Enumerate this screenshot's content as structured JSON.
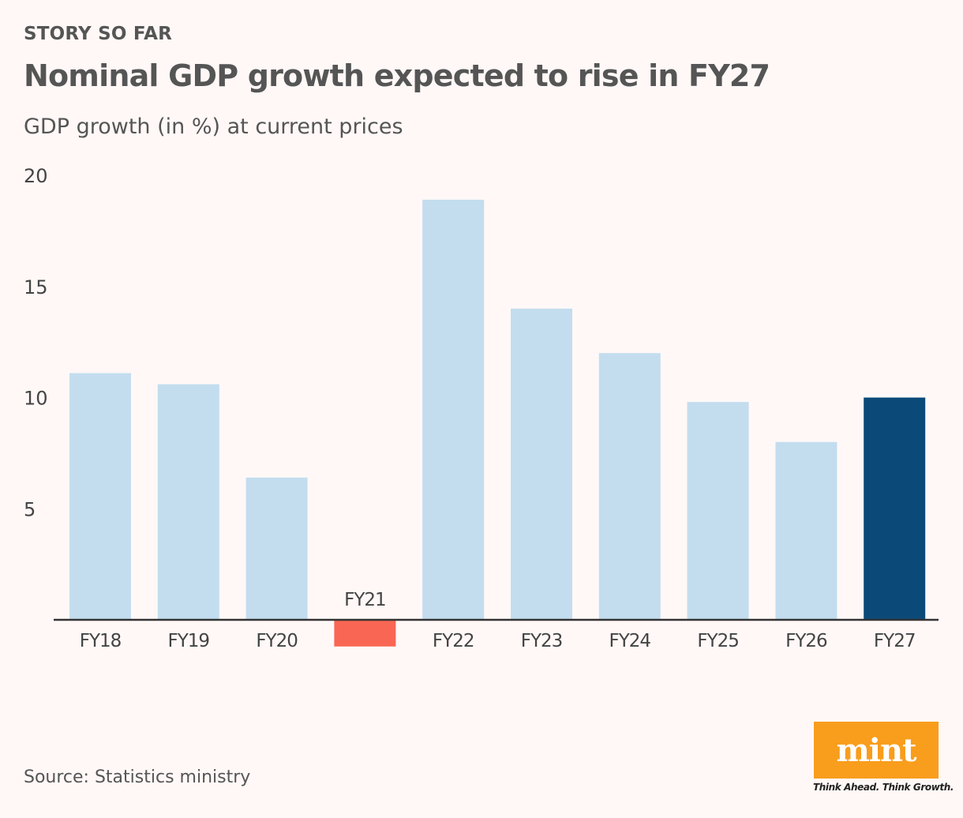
{
  "kicker": "STORY SO FAR",
  "title": "Nominal GDP growth expected to rise in FY27",
  "source": "Source: Statistics ministry",
  "logo": {
    "text": "mint",
    "tagline": "Think Ahead. Think Growth.",
    "color": "#f99d1c"
  },
  "chart_data": {
    "type": "bar",
    "subtitle": "GDP growth (in %) at current prices",
    "categories": [
      "FY18",
      "FY19",
      "FY20",
      "FY21",
      "FY22",
      "FY23",
      "FY24",
      "FY25",
      "FY26",
      "FY27"
    ],
    "values": [
      11.1,
      10.6,
      6.4,
      -1.2,
      18.9,
      14.0,
      12.0,
      9.8,
      8.0,
      10.0
    ],
    "yticks": [
      "5",
      "10",
      "15",
      "20"
    ],
    "ytick_values": [
      5,
      10,
      15,
      20
    ],
    "ylim": [
      -2,
      20
    ],
    "grid": false,
    "colors": {
      "default": "#c3ddef",
      "negative": "#f96654",
      "highlight": "#0b4a78"
    },
    "highlight": "FY27"
  }
}
